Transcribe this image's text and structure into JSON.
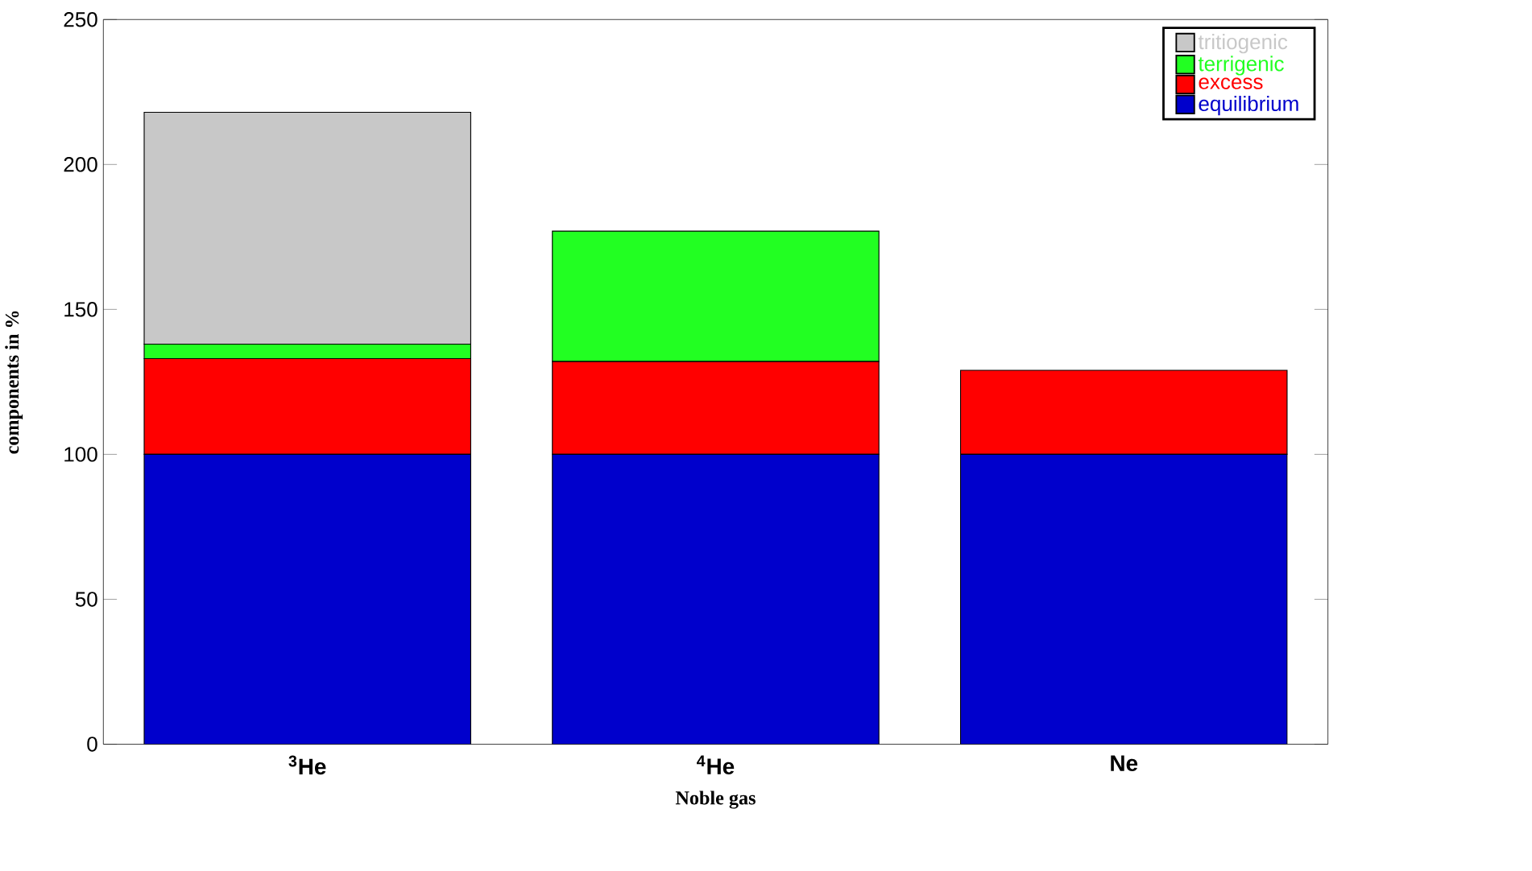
{
  "chart_data": {
    "type": "bar",
    "stacked": true,
    "xlabel": "Noble gas",
    "ylabel": "components in %",
    "categories": [
      "$^{3}$He",
      "$^{4}$He",
      "Ne"
    ],
    "series": [
      {
        "name": "equilibrium",
        "color": "#0000cc",
        "values": [
          100,
          100,
          100
        ]
      },
      {
        "name": "excess",
        "color": "#ff0000",
        "values": [
          33,
          32,
          29
        ]
      },
      {
        "name": "terrigenic",
        "color": "#22ff22",
        "values": [
          5,
          45,
          null
        ]
      },
      {
        "name": "tritiogenic",
        "color": "#c8c8c8",
        "values": [
          80,
          null,
          null
        ]
      }
    ],
    "ylim": [
      0,
      250
    ],
    "yticks": [
      0,
      50,
      100,
      150,
      200,
      250
    ],
    "legend": "top right",
    "grid": false
  }
}
